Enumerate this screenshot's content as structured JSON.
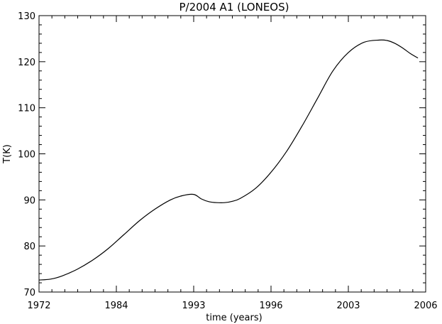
{
  "chart_data": {
    "type": "line",
    "title": "P/2004 A1 (LONEOS)",
    "xlabel": "time (years)",
    "ylabel": "T(K)",
    "xlim": [
      0,
      100
    ],
    "ylim": [
      70,
      130
    ],
    "x_ticks": [
      {
        "value": 0,
        "label": "1972"
      },
      {
        "value": 20,
        "label": "1984"
      },
      {
        "value": 40,
        "label": "1993"
      },
      {
        "value": 60,
        "label": "1996"
      },
      {
        "value": 80,
        "label": "2003"
      },
      {
        "value": 100,
        "label": "2006"
      }
    ],
    "y_ticks": [
      70,
      80,
      90,
      100,
      110,
      120,
      130
    ],
    "grid": false,
    "series": [
      {
        "color": "#000000",
        "x": [
          0,
          3,
          6,
          10,
          14,
          18,
          22,
          26,
          30,
          34,
          37,
          40,
          42,
          44,
          46,
          48,
          50,
          52,
          56,
          60,
          64,
          68,
          72,
          76,
          80,
          84,
          88,
          90,
          92,
          94,
          96,
          98
        ],
        "y": [
          72.6,
          72.8,
          73.5,
          75,
          77,
          79.5,
          82.5,
          85.5,
          88,
          90,
          90.9,
          91.2,
          90.2,
          89.6,
          89.4,
          89.4,
          89.7,
          90.3,
          92.5,
          96,
          100.5,
          106,
          112,
          118,
          122,
          124.2,
          124.7,
          124.6,
          124,
          123,
          121.8,
          120.8
        ]
      }
    ]
  }
}
